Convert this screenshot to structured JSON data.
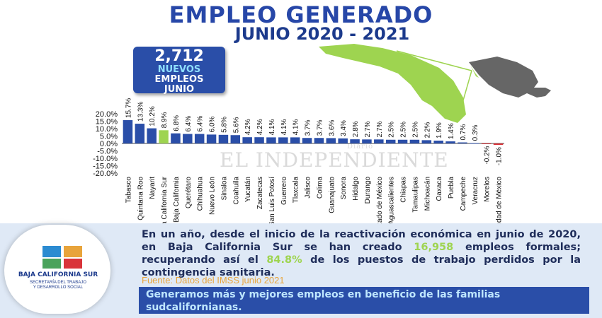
{
  "header": {
    "title": "EMPLEO GENERADO",
    "subtitle": "JUNIO 2020 - 2021"
  },
  "badge": {
    "number": "2,712",
    "line1": "NUEVOS",
    "line2": "EMPLEOS",
    "line3": "JUNIO"
  },
  "map": {
    "icon": "mexico-map-icon",
    "highlight_color": "#9ed450",
    "base_color": "#666666"
  },
  "watermark": {
    "text": "EL INDEPENDIENTE",
    "small": "Diario"
  },
  "chart_data": {
    "type": "bar",
    "categories": [
      "Tabasco",
      "Quintana Roo",
      "Nayarit",
      "Baja California Sur",
      "Baja California",
      "Querétaro",
      "Chihuahua",
      "Nuevo León",
      "Sinaloa",
      "Coahuila",
      "Yucatán",
      "Zacatecas",
      "San Luis Potosí",
      "Guerrero",
      "Tlaxcala",
      "Jalisco",
      "Colima",
      "Guanajuato",
      "Sonora",
      "Hidalgo",
      "Durango",
      "Estado de México",
      "Aguascalientes",
      "Chiapas",
      "Tamaulipas",
      "Michoacán",
      "Oaxaca",
      "Puebla",
      "Campeche",
      "Veracruz",
      "Morelos",
      "Ciudad de México"
    ],
    "values": [
      15.7,
      13.3,
      10.2,
      8.9,
      6.8,
      6.4,
      6.4,
      6.0,
      5.8,
      5.6,
      4.2,
      4.2,
      4.1,
      4.1,
      4.1,
      3.7,
      3.7,
      3.6,
      3.4,
      2.8,
      2.7,
      2.7,
      2.5,
      2.5,
      2.5,
      2.2,
      1.9,
      1.4,
      0.7,
      0.3,
      -0.2,
      -1.0
    ],
    "value_labels": [
      "15.7%",
      "13.3%",
      "10.2%",
      "8.9%",
      "6.8%",
      "6.4%",
      "6.4%",
      "6.0%",
      "5.8%",
      "5.6%",
      "4.2%",
      "4.2%",
      "4.1%",
      "4.1%",
      "4.1%",
      "3.7%",
      "3.7%",
      "3.6%",
      "3.4%",
      "2.8%",
      "2.7%",
      "2.7%",
      "2.5%",
      "2.5%",
      "2.5%",
      "2.2%",
      "1.9%",
      "1.4%",
      "0.7%",
      "0.3%",
      "-0.2%",
      "-1.0%"
    ],
    "highlight_category": "Baja California Sur",
    "ylim": [
      -20,
      20
    ],
    "yticks": [
      "20.0%",
      "15.0%",
      "10.0%",
      "5.0%",
      "0.0%",
      "-5.0%",
      "-10.0%",
      "-15.0%",
      "-20.0%"
    ],
    "colors": {
      "bar": "#2a4ea8",
      "highlight": "#9ed450",
      "negative": "#d9343a"
    },
    "grid": false
  },
  "logo": {
    "name": "BAJA CALIFORNIA SUR",
    "sub1": "SECRETARÍA DEL TRABAJO",
    "sub2": "Y DESARROLLO SOCIAL"
  },
  "message": {
    "part1": "En un año, desde el inicio de la reactivación económica en junio de 2020,  en Baja California Sur se han creado ",
    "highlight1": "16,958",
    "part2": " empleos formales; recuperando así el ",
    "highlight2": "84.8%",
    "part3": "  de los puestos de trabajo perdidos por la contingencia sanitaria."
  },
  "source": "Fuente: Datos del IMSS junio 2021",
  "footer": "Generamos más y mejores empleos en beneficio de las familias sudcalifornianas."
}
